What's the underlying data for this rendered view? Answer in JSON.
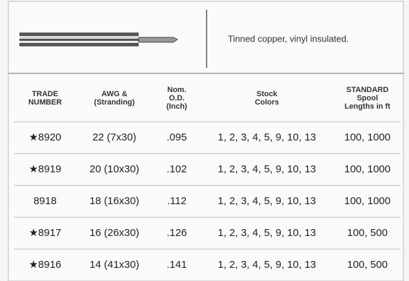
{
  "description": "Tinned copper, vinyl insulated.",
  "table": {
    "header": [
      [
        "TRADE",
        "NUMBER"
      ],
      [
        "AWG &",
        "(Stranding)"
      ],
      [
        "Nom.",
        "O.D.",
        "(Inch)"
      ],
      [
        "Stock",
        "Colors"
      ],
      [
        "STANDARD",
        "Spool",
        "Lengths in ft"
      ]
    ],
    "rows": [
      [
        "★8920",
        "22 (7x30)",
        ".095",
        "1, 2, 3, 4, 5, 9, 10, 13",
        "100, 1000"
      ],
      [
        "★8919",
        "20 (10x30)",
        ".102",
        "1, 2, 3, 4, 5, 9, 10, 13",
        "100, 1000"
      ],
      [
        "8918",
        "18 (16x30)",
        ".112",
        "1, 2, 3, 4, 5, 9, 10, 13",
        "100, 1000"
      ],
      [
        "★8917",
        "16 (26x30)",
        ".126",
        "1, 2, 3, 4, 5, 9, 10, 13",
        "100, 500"
      ],
      [
        "★8916",
        "14 (41x30)",
        ".141",
        "1, 2, 3, 4, 5, 9, 10, 13",
        "100, 500"
      ]
    ]
  }
}
